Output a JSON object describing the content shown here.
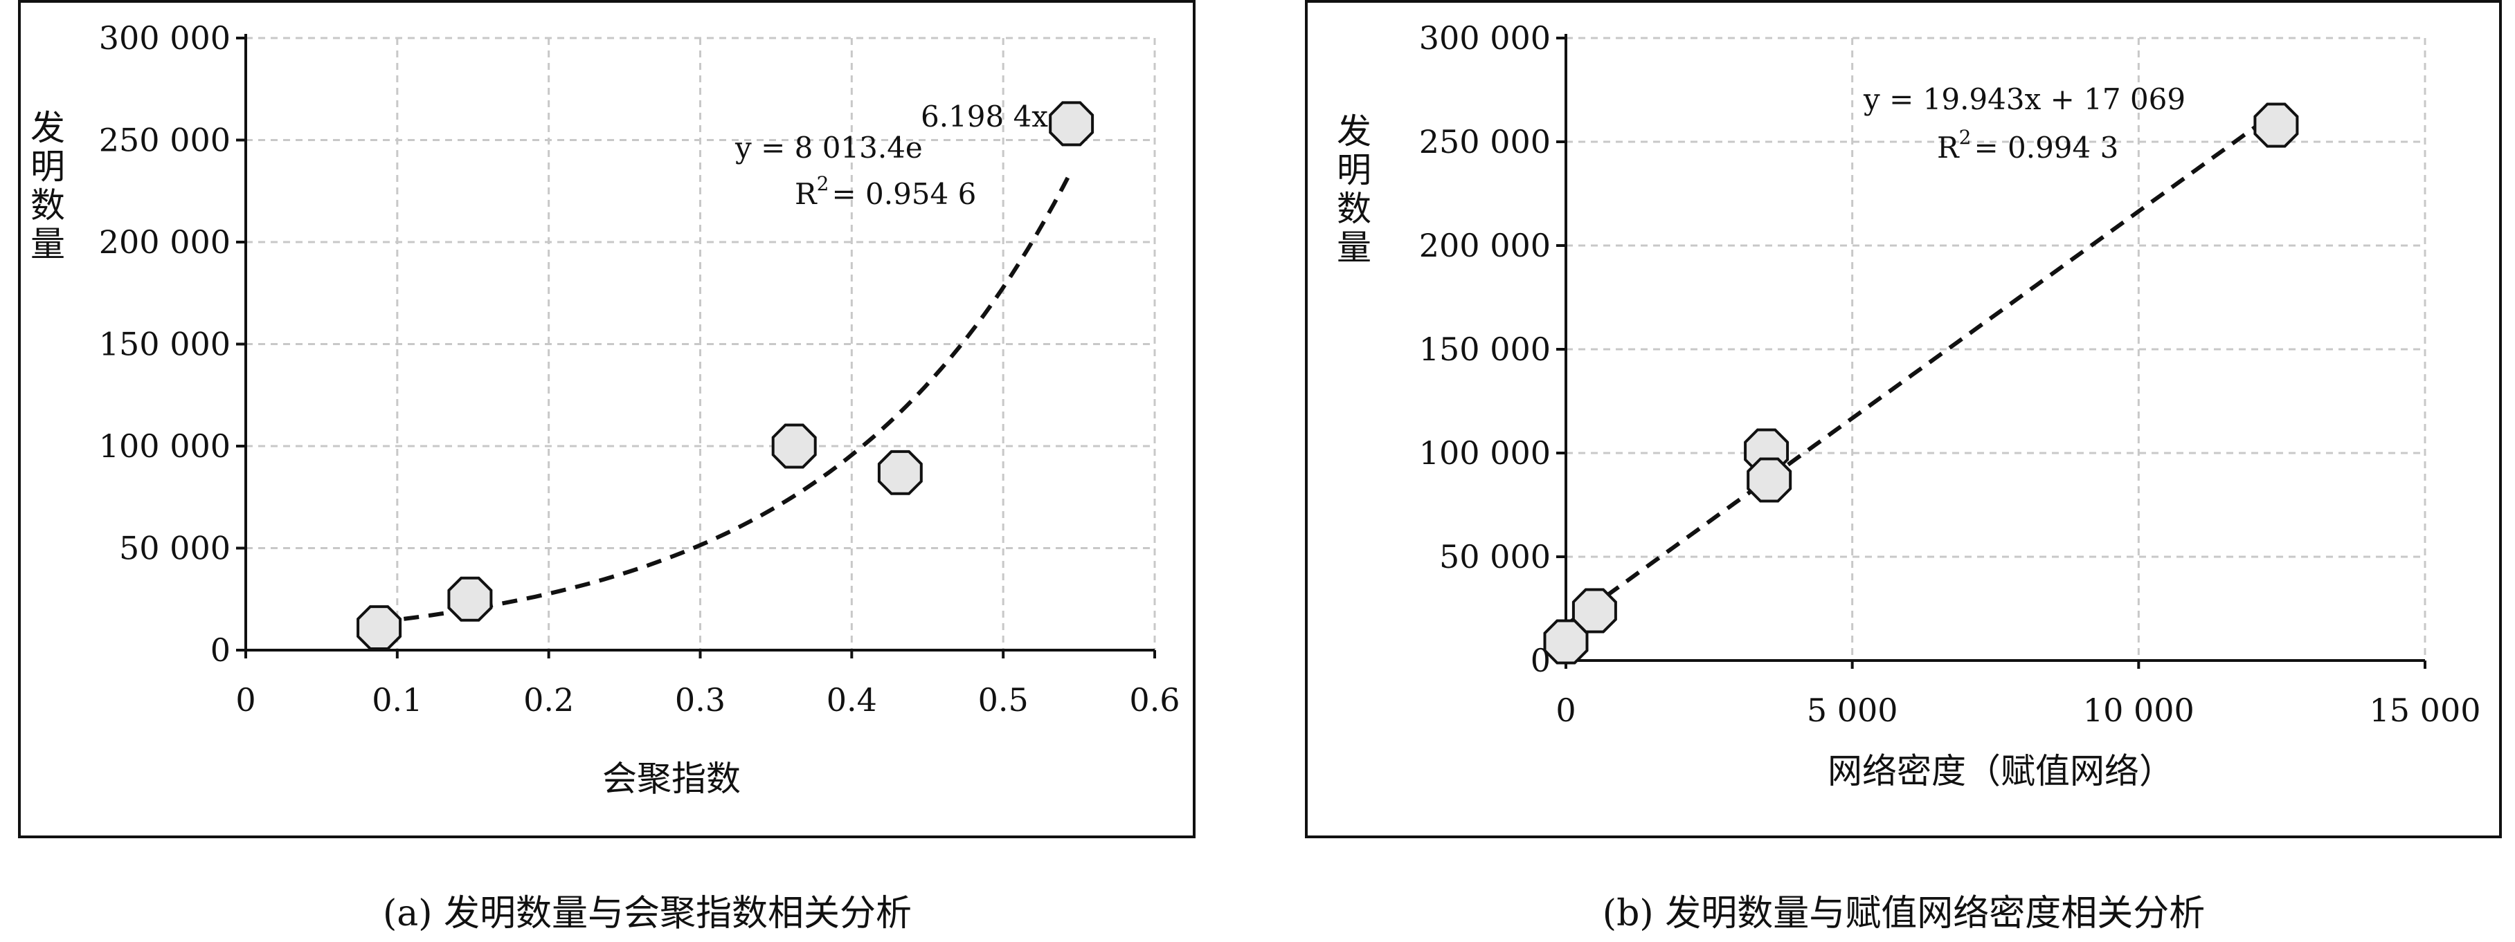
{
  "chart_data": [
    {
      "type": "scatter",
      "panel": "a",
      "caption": "(a)  发明数量与会聚指数相关分析",
      "xlabel": "会聚指数",
      "ylabel": "发明数量",
      "xlim": [
        0,
        0.6
      ],
      "ylim": [
        0,
        300000
      ],
      "xticks": [
        0,
        0.1,
        0.2,
        0.3,
        0.4,
        0.5,
        0.6
      ],
      "xtick_labels": [
        "0",
        "0.1",
        "0.2",
        "0.3",
        "0.4",
        "0.5",
        "0.6"
      ],
      "yticks": [
        0,
        50000,
        100000,
        150000,
        200000,
        250000,
        300000
      ],
      "ytick_labels": [
        "0",
        "50 000",
        "100 000",
        "150 000",
        "200 000",
        "250 000",
        "300 000"
      ],
      "grid": true,
      "points": [
        {
          "x": 0.088,
          "y": 11000
        },
        {
          "x": 0.148,
          "y": 25000
        },
        {
          "x": 0.362,
          "y": 100000
        },
        {
          "x": 0.432,
          "y": 87000
        },
        {
          "x": 0.545,
          "y": 258000
        }
      ],
      "trendline": {
        "kind": "exponential",
        "a": 8013.4,
        "b": 6.1984,
        "x_range": [
          0.088,
          0.545
        ]
      },
      "equation_main": "y = 8 013.4e",
      "equation_exp": "6.198 4x",
      "r2_prefix": "R",
      "r2_sup": "2",
      "r2_value": "= 0.954 6"
    },
    {
      "type": "scatter",
      "panel": "b",
      "caption": "(b)  发明数量与赋值网络密度相关分析",
      "xlabel": "网络密度（赋值网络）",
      "ylabel": "发明数量",
      "xlim": [
        0,
        15000
      ],
      "ylim": [
        0,
        300000
      ],
      "xticks": [
        0,
        5000,
        10000,
        15000
      ],
      "xtick_labels": [
        "0",
        "5 000",
        "10 000",
        "15 000"
      ],
      "yticks": [
        0,
        50000,
        100000,
        150000,
        200000,
        250000,
        300000
      ],
      "ytick_labels": [
        "0",
        "50 000",
        "100 000",
        "150 000",
        "200 000",
        "250 000",
        "300 000"
      ],
      "grid": true,
      "points": [
        {
          "x": 0,
          "y": 9000
        },
        {
          "x": 500,
          "y": 24000
        },
        {
          "x": 3500,
          "y": 101000
        },
        {
          "x": 3550,
          "y": 87000
        },
        {
          "x": 12400,
          "y": 258000
        }
      ],
      "trendline": {
        "kind": "linear",
        "slope": 19.943,
        "intercept": 17069,
        "x_range": [
          0,
          12400
        ]
      },
      "equation_main": "y = 19.943x + 17 069",
      "r2_prefix": "R",
      "r2_sup": "2",
      "r2_value": "= 0.994 3"
    }
  ]
}
